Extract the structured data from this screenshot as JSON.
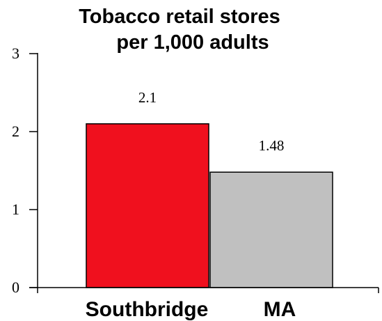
{
  "chart_data": {
    "type": "bar",
    "title_lines": [
      "Tobacco retail stores",
      "per 1,000 adults"
    ],
    "categories": [
      "Southbridge",
      "MA"
    ],
    "values": [
      2.1,
      1.48
    ],
    "value_labels": [
      "2.1",
      "1.48"
    ],
    "bar_colors": [
      "#f0101e",
      "#c0c0c0"
    ],
    "ylim": [
      0,
      3
    ],
    "yticks": [
      0,
      1,
      2,
      3
    ],
    "ytick_labels": [
      "0",
      "1",
      "2",
      "3"
    ],
    "xlabel": "",
    "ylabel": "",
    "grid": false,
    "legend": false
  }
}
